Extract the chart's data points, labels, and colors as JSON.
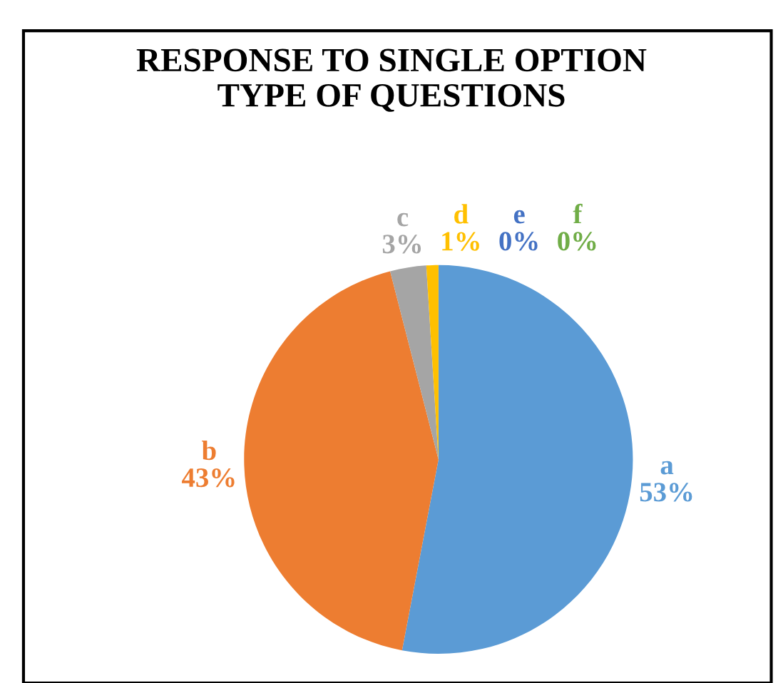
{
  "chart_data": {
    "type": "pie",
    "title": "RESPONSE TO SINGLE OPTION\nTYPE OF QUESTIONS",
    "categories": [
      "a",
      "b",
      "c",
      "d",
      "e",
      "f"
    ],
    "values": [
      53,
      43,
      3,
      1,
      0,
      0
    ],
    "colors": [
      "#5b9bd5",
      "#ed7d31",
      "#a5a5a5",
      "#ffc000",
      "#4472c4",
      "#70ad47"
    ],
    "value_labels": [
      "53%",
      "43%",
      "3%",
      "1%",
      "0%",
      "0%"
    ]
  }
}
